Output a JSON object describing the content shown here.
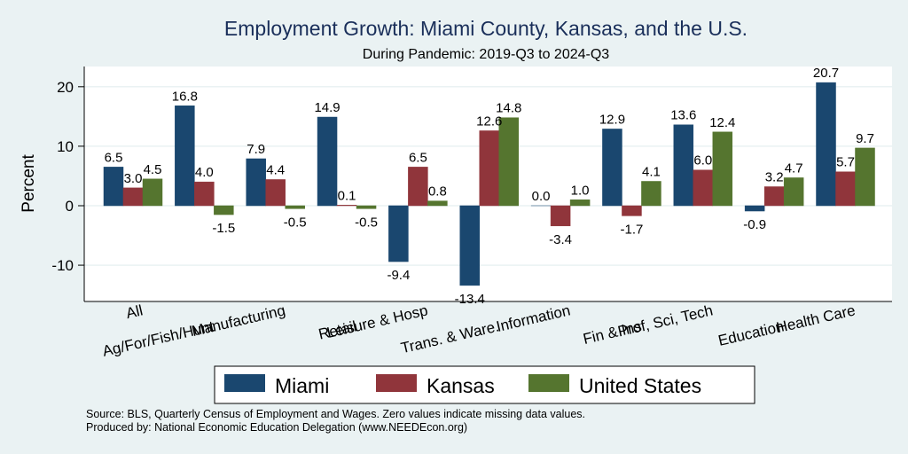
{
  "chart_data": {
    "type": "bar",
    "title": "Employment Growth: Miami County, Kansas, and the U.S.",
    "subtitle": "During Pandemic: 2019-Q3 to 2024-Q3",
    "xlabel": "",
    "ylabel": "Percent",
    "ylim": [
      -16.1,
      23.4
    ],
    "yticks": [
      -10,
      0,
      10,
      20
    ],
    "grid": true,
    "legend_position": "bottom",
    "categories": [
      "All",
      "Ag/For/Fish/Hunt",
      "Manufacturing",
      "Retail",
      "Leisure & Hosp",
      "Trans. & Ware.",
      "Information",
      "Fin & Ins",
      "Prof, Sci, Tech",
      "Education",
      "Health Care"
    ],
    "series": [
      {
        "name": "Miami",
        "color": "#1a476f",
        "values": [
          6.5,
          16.8,
          7.9,
          14.9,
          -9.4,
          -13.4,
          0.0,
          12.9,
          13.6,
          -0.9,
          20.7
        ]
      },
      {
        "name": "Kansas",
        "color": "#90353b",
        "values": [
          3.0,
          4.0,
          4.4,
          0.1,
          6.5,
          12.6,
          -3.4,
          -1.7,
          6.0,
          3.2,
          5.7
        ]
      },
      {
        "name": "United States",
        "color": "#55752f",
        "values": [
          4.5,
          -1.5,
          -0.5,
          -0.5,
          0.8,
          14.8,
          1.0,
          4.1,
          12.4,
          4.7,
          9.7
        ]
      }
    ],
    "notes": [
      "Source: BLS, Quarterly Census of Employment and Wages. Zero values indicate missing data values.",
      "Produced by: National Economic Education Delegation (www.NEEDEcon.org)"
    ]
  }
}
